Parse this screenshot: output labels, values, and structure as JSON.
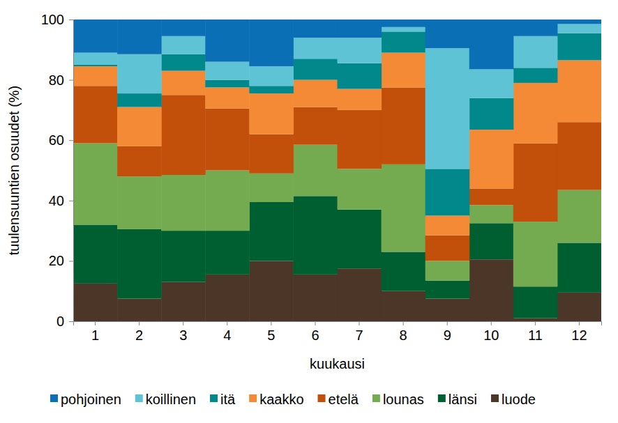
{
  "chart_data": {
    "type": "bar",
    "stacked": true,
    "x_label": "kuukausi",
    "y_label": "tuulensuuntien osuudet (%)",
    "categories": [
      "1",
      "2",
      "3",
      "4",
      "5",
      "6",
      "7",
      "8",
      "9",
      "10",
      "11",
      "12"
    ],
    "ylim": [
      0,
      100
    ],
    "yticks": [
      0,
      20,
      40,
      60,
      80,
      100
    ],
    "legend": "bottom",
    "series": [
      {
        "name": "pohjoinen",
        "color": "#0a6fb5",
        "values": [
          11,
          11.5,
          5.5,
          14,
          15.5,
          6,
          6,
          2.5,
          9.5,
          16.5,
          5.5,
          1.5
        ]
      },
      {
        "name": "koillinen",
        "color": "#5fc3d6",
        "values": [
          4,
          13,
          6,
          6,
          6.5,
          7,
          8.5,
          1.5,
          40,
          9.5,
          10.5,
          3
        ]
      },
      {
        "name": "itä",
        "color": "#00888a",
        "values": [
          0.5,
          4.5,
          5.5,
          2.5,
          2.5,
          7,
          8.5,
          7,
          15.5,
          10.5,
          5,
          9
        ]
      },
      {
        "name": "kaakko",
        "color": "#f48a35",
        "values": [
          6.5,
          13,
          8,
          7,
          13.5,
          9,
          7,
          11.5,
          6.5,
          19.5,
          20,
          20.5
        ]
      },
      {
        "name": "etelä",
        "color": "#c2500a",
        "values": [
          19,
          10,
          26.5,
          20.5,
          13,
          12.5,
          19.5,
          25.5,
          8.5,
          5.5,
          26,
          22.5
        ]
      },
      {
        "name": "lounas",
        "color": "#74aa50",
        "values": [
          27,
          17.5,
          18.5,
          20,
          9.5,
          17,
          13.5,
          29,
          6.5,
          6,
          21.5,
          17.5
        ]
      },
      {
        "name": "länsi",
        "color": "#005f30",
        "values": [
          19.5,
          23,
          17,
          14.5,
          19.5,
          26,
          19.5,
          13,
          6,
          12,
          10.5,
          16.5
        ]
      },
      {
        "name": "luode",
        "color": "#4b3628",
        "values": [
          12.5,
          7.5,
          13,
          15.5,
          20,
          15.5,
          17.5,
          10,
          7.5,
          20.5,
          1,
          9.5
        ]
      }
    ]
  }
}
